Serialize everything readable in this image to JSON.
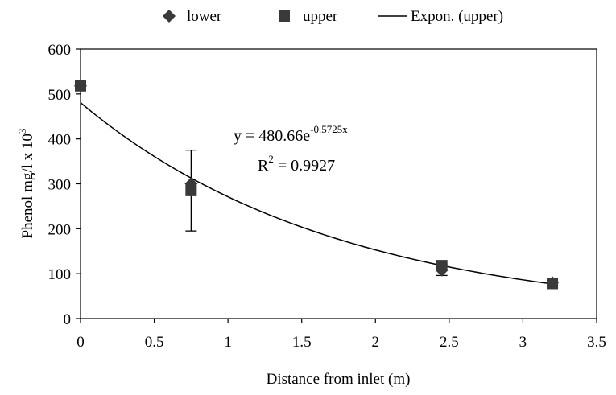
{
  "chart_data": {
    "type": "scatter",
    "title": "",
    "xlabel": "Distance from inlet (m)",
    "ylabel": {
      "base": "Phenol mg/l x 10",
      "exponent": "3"
    },
    "xlim": [
      0,
      3.5
    ],
    "ylim": [
      0,
      600
    ],
    "xticks": [
      "0",
      "0.5",
      "1",
      "1.5",
      "2",
      "2.5",
      "3",
      "3.5"
    ],
    "yticks": [
      "0",
      "100",
      "200",
      "300",
      "400",
      "500",
      "600"
    ],
    "grid": false,
    "legend_position": "top",
    "legend": [
      {
        "label": "lower",
        "marker": "diamond"
      },
      {
        "label": "upper",
        "marker": "square"
      },
      {
        "label": "Expon. (upper)",
        "marker": "line"
      }
    ],
    "series": [
      {
        "name": "lower",
        "marker": "diamond",
        "color": "#3a3a3a",
        "x": [
          0,
          0.75,
          2.45,
          3.2
        ],
        "y": [
          518,
          300,
          108,
          80
        ],
        "error": [
          0,
          0,
          12,
          6
        ]
      },
      {
        "name": "upper",
        "marker": "square",
        "color": "#3a3a3a",
        "x": [
          0,
          0.75,
          2.45,
          3.2
        ],
        "y": [
          518,
          285,
          118,
          78
        ],
        "error": [
          0,
          90,
          0,
          0
        ]
      }
    ],
    "trendline": {
      "name": "Expon. (upper)",
      "a": 480.66,
      "b": -0.5725,
      "x_range": [
        0,
        3.2
      ],
      "color": "#000000"
    },
    "annotations": {
      "equation_base": "y = 480.66e",
      "equation_exponent": "-0.5725x",
      "r2_base": "R",
      "r2_exponent": "2",
      "r2_value": " = 0.9927"
    }
  }
}
